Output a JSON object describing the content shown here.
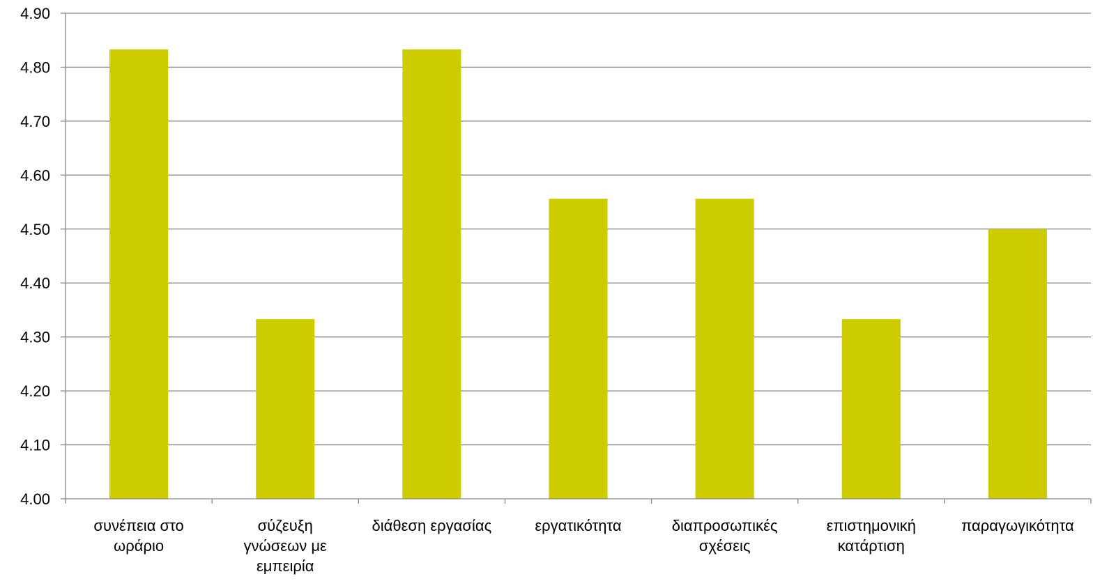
{
  "chart_data": {
    "type": "bar",
    "categories": [
      [
        "συνέπεια στο",
        "ωράριο"
      ],
      [
        "σύζευξη",
        "γνώσεων με",
        "εμπειρία"
      ],
      [
        "διάθεση εργασίας"
      ],
      [
        "εργατικότητα"
      ],
      [
        "διαπροσωπικές",
        "σχέσεις"
      ],
      [
        "επιστημονική",
        "κατάρτιση"
      ],
      [
        "παραγωγικότητα"
      ]
    ],
    "values": [
      4.833,
      4.333,
      4.833,
      4.556,
      4.556,
      4.333,
      4.5
    ],
    "ylim": [
      4.0,
      4.9
    ],
    "yticks": [
      "4.00",
      "4.10",
      "4.20",
      "4.30",
      "4.40",
      "4.50",
      "4.60",
      "4.70",
      "4.80",
      "4.90"
    ],
    "grid": true,
    "bar_color": "#cccc00",
    "gridline_color": "#868686"
  }
}
